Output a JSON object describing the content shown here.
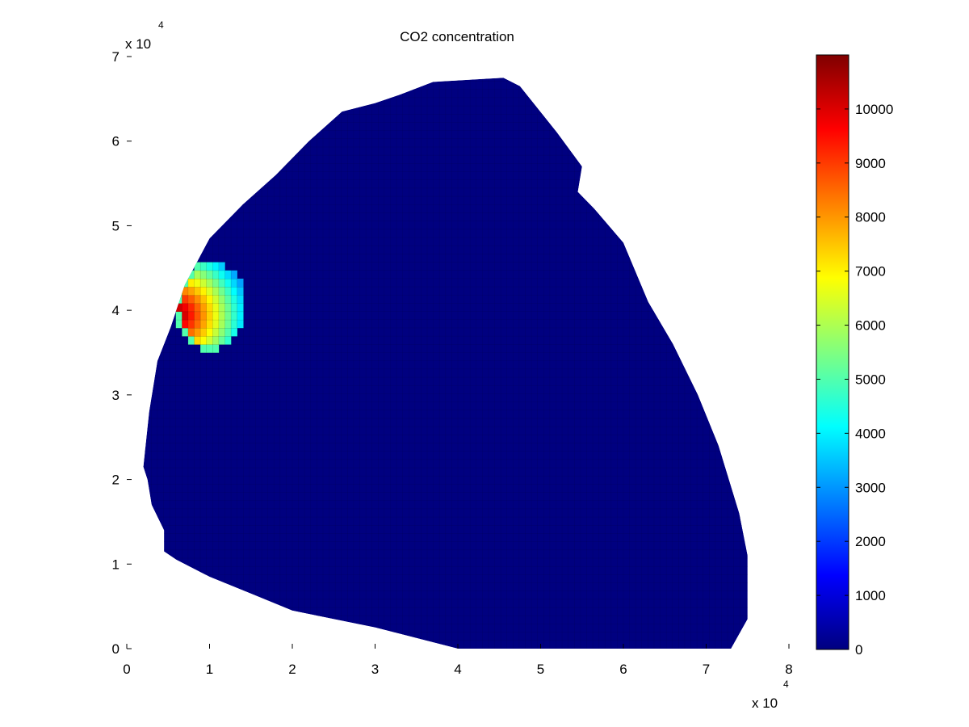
{
  "chart_data": {
    "type": "heatmap",
    "title": "CO2 concentration",
    "xlabel": "",
    "ylabel": "",
    "x_exponent_label": "x 10",
    "x_exponent_power": "4",
    "y_exponent_label": "x 10",
    "y_exponent_power": "4",
    "xlim": [
      0,
      80000
    ],
    "ylim": [
      0,
      70000
    ],
    "x_ticks": [
      0,
      10000,
      20000,
      30000,
      40000,
      50000,
      60000,
      70000,
      80000
    ],
    "x_tick_labels": [
      "0",
      "1",
      "2",
      "3",
      "4",
      "5",
      "6",
      "7",
      "8"
    ],
    "y_ticks": [
      0,
      10000,
      20000,
      30000,
      40000,
      50000,
      60000,
      70000
    ],
    "y_tick_labels": [
      "0",
      "1",
      "2",
      "3",
      "4",
      "5",
      "6",
      "7"
    ],
    "colormap": "jet",
    "clim": [
      0,
      11000
    ],
    "colorbar_ticks": [
      0,
      1000,
      2000,
      3000,
      4000,
      5000,
      6000,
      7000,
      8000,
      9000,
      10000
    ],
    "colorbar_tick_labels": [
      "0",
      "1000",
      "2000",
      "3000",
      "4000",
      "5000",
      "6000",
      "7000",
      "8000",
      "9000",
      "10000"
    ],
    "background_value": 0,
    "domain_outline": [
      [
        2000,
        21500
      ],
      [
        2700,
        28000
      ],
      [
        3700,
        34000
      ],
      [
        5300,
        38000
      ],
      [
        7000,
        43000
      ],
      [
        10000,
        48500
      ],
      [
        14000,
        52500
      ],
      [
        18000,
        56000
      ],
      [
        22000,
        60000
      ],
      [
        26000,
        63500
      ],
      [
        30000,
        64500
      ],
      [
        33000,
        65500
      ],
      [
        37000,
        67000
      ],
      [
        45500,
        67500
      ],
      [
        47500,
        66500
      ],
      [
        52000,
        61000
      ],
      [
        55000,
        57000
      ],
      [
        54500,
        54000
      ],
      [
        56500,
        52000
      ],
      [
        60000,
        48000
      ],
      [
        63000,
        41000
      ],
      [
        66000,
        36000
      ],
      [
        69000,
        30000
      ],
      [
        71500,
        24000
      ],
      [
        74000,
        16000
      ],
      [
        75000,
        11000
      ],
      [
        75000,
        3500
      ],
      [
        73000,
        0
      ],
      [
        40000,
        0
      ],
      [
        36000,
        1000
      ],
      [
        30000,
        2500
      ],
      [
        25000,
        3500
      ],
      [
        20000,
        4500
      ],
      [
        15000,
        6500
      ],
      [
        10000,
        8500
      ],
      [
        6000,
        10500
      ],
      [
        4500,
        11500
      ],
      [
        4500,
        14000
      ],
      [
        3000,
        17000
      ],
      [
        2500,
        20000
      ]
    ],
    "plume": {
      "center": [
        10000,
        40500
      ],
      "radius_x": 4400,
      "radius_y": 5200,
      "peak": 11000,
      "peak_location": [
        6000,
        39500
      ],
      "min_value": 3000
    }
  }
}
